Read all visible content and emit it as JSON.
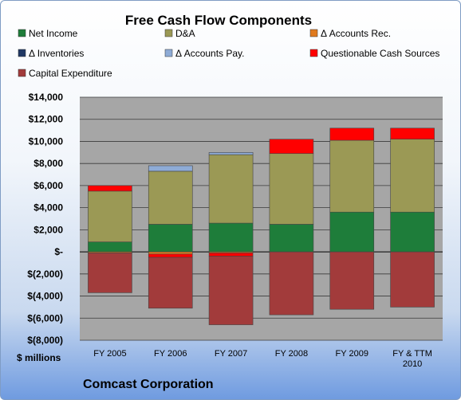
{
  "chart_data": {
    "type": "bar",
    "stacked": true,
    "title": "Free Cash Flow Components",
    "ylabel": "$ millions",
    "company": "Comcast Corporation",
    "categories": [
      "FY 2005",
      "FY 2006",
      "FY 2007",
      "FY 2008",
      "FY 2009",
      "FY & TTM 2010"
    ],
    "ylim": [
      -8000,
      14000
    ],
    "ytick_step": 2000,
    "ytick_labels": [
      "$(8,000)",
      "$(6,000)",
      "$(4,000)",
      "$(2,000)",
      "$-",
      "$2,000",
      "$4,000",
      "$6,000",
      "$8,000",
      "$10,000",
      "$12,000",
      "$14,000"
    ],
    "grid": true,
    "legend_position": "top",
    "series": [
      {
        "name": "Net Income",
        "color": "#1e7d3a",
        "values": [
          900,
          2500,
          2600,
          2500,
          3600,
          3600
        ]
      },
      {
        "name": "D&A",
        "color": "#9b9955",
        "values": [
          4600,
          4800,
          6200,
          6400,
          6500,
          6600
        ]
      },
      {
        "name": "Δ Accounts Rec.",
        "color": "#e07a1e",
        "values": [
          -100,
          -200,
          -100,
          0,
          0,
          0
        ]
      },
      {
        "name": "Δ Inventories",
        "color": "#203864",
        "values": [
          0,
          0,
          0,
          0,
          0,
          0
        ]
      },
      {
        "name": "Δ Accounts Pay.",
        "color": "#8eabd6",
        "values": [
          0,
          500,
          200,
          0,
          0,
          0
        ]
      },
      {
        "name": "Questionable Cash Sources",
        "color": "#ff0000",
        "values": [
          500,
          -300,
          -300,
          1300,
          1100,
          1000
        ]
      },
      {
        "name": "Capital Expenditure",
        "color": "#a23b3b",
        "values": [
          -3600,
          -4600,
          -6200,
          -5700,
          -5200,
          -5000
        ]
      }
    ]
  }
}
